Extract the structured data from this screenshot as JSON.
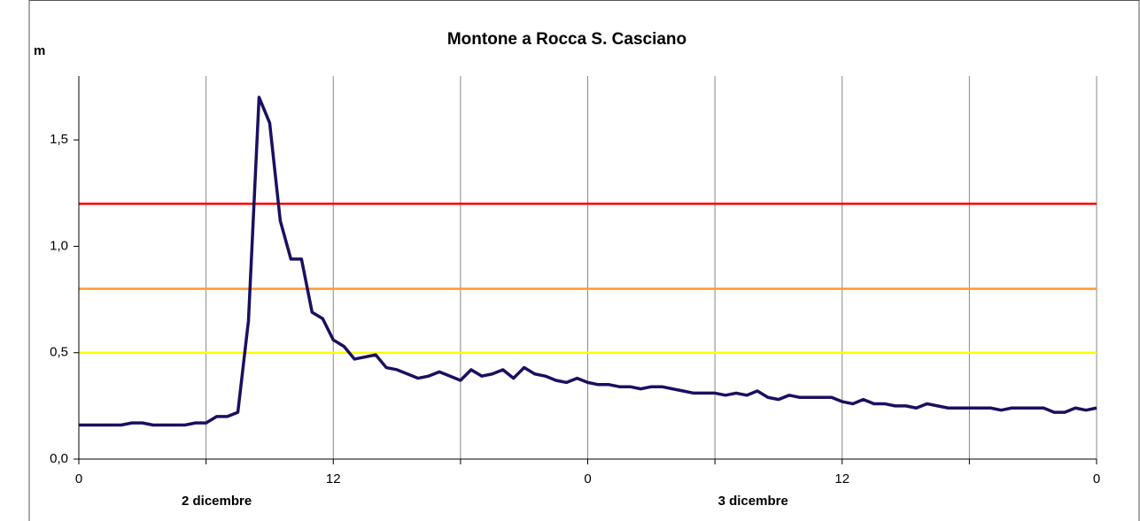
{
  "chart_data": {
    "type": "line",
    "title": "Montone a Rocca S. Casciano",
    "y_label": "m",
    "x": [
      0,
      0.5,
      1,
      1.5,
      2,
      2.5,
      3,
      3.5,
      4,
      4.5,
      5,
      5.5,
      6,
      6.5,
      7,
      7.5,
      8,
      8.5,
      9,
      9.5,
      10,
      10.5,
      11,
      11.5,
      12,
      12.5,
      13,
      13.5,
      14,
      14.5,
      15,
      15.5,
      16,
      16.5,
      17,
      17.5,
      18,
      18.5,
      19,
      19.5,
      20,
      20.5,
      21,
      21.5,
      22,
      22.5,
      23,
      23.5,
      24,
      24.5,
      25,
      25.5,
      26,
      26.5,
      27,
      27.5,
      28,
      28.5,
      29,
      29.5,
      30,
      30.5,
      31,
      31.5,
      32,
      32.5,
      33,
      33.5,
      34,
      34.5,
      35,
      35.5,
      36,
      36.5,
      37,
      37.5,
      38,
      38.5,
      39,
      39.5,
      40,
      40.5,
      41,
      41.5,
      42,
      42.5,
      43,
      43.5,
      44,
      44.5,
      45,
      45.5,
      46,
      46.5,
      47,
      47.5,
      48
    ],
    "series": [
      {
        "color": "#1a1060",
        "values": [
          0.16,
          0.16,
          0.16,
          0.16,
          0.16,
          0.17,
          0.17,
          0.16,
          0.16,
          0.16,
          0.16,
          0.17,
          0.17,
          0.2,
          0.2,
          0.22,
          0.65,
          1.7,
          1.58,
          1.12,
          0.94,
          0.94,
          0.69,
          0.66,
          0.56,
          0.53,
          0.47,
          0.48,
          0.49,
          0.43,
          0.42,
          0.4,
          0.38,
          0.39,
          0.41,
          0.39,
          0.37,
          0.42,
          0.39,
          0.4,
          0.42,
          0.38,
          0.43,
          0.4,
          0.39,
          0.37,
          0.36,
          0.38,
          0.36,
          0.35,
          0.35,
          0.34,
          0.34,
          0.33,
          0.34,
          0.34,
          0.33,
          0.32,
          0.31,
          0.31,
          0.31,
          0.3,
          0.31,
          0.3,
          0.32,
          0.29,
          0.28,
          0.3,
          0.29,
          0.29,
          0.29,
          0.29,
          0.27,
          0.26,
          0.28,
          0.26,
          0.26,
          0.25,
          0.25,
          0.24,
          0.26,
          0.25,
          0.24,
          0.24,
          0.24,
          0.24,
          0.24,
          0.23,
          0.24,
          0.24,
          0.24,
          0.24,
          0.22,
          0.22,
          0.24,
          0.23,
          0.24
        ]
      }
    ],
    "thresholds": [
      {
        "value": 1.2,
        "color": "#ff0000"
      },
      {
        "value": 0.8,
        "color": "#ff9933"
      },
      {
        "value": 0.5,
        "color": "#ffff00"
      }
    ],
    "xlim": [
      0,
      48
    ],
    "xticks": [
      0,
      12,
      {
        "value": 24,
        "label": "0"
      },
      {
        "value": 36,
        "label": "12"
      },
      {
        "value": 48,
        "label": "0"
      }
    ],
    "xminorticks": [
      6,
      18,
      30,
      42
    ],
    "x_annotations": [
      {
        "text": "2 dicembre",
        "x": 6.5
      },
      {
        "text": "3 dicembre",
        "x": 31.8
      }
    ],
    "ylim": [
      0,
      1.8
    ],
    "yticks": [
      {
        "value": 0,
        "label": "0,0"
      },
      {
        "value": 0.5,
        "label": "0,5"
      },
      {
        "value": 1,
        "label": "1,0"
      },
      {
        "value": 1.5,
        "label": "1,5"
      }
    ],
    "grid": true
  }
}
